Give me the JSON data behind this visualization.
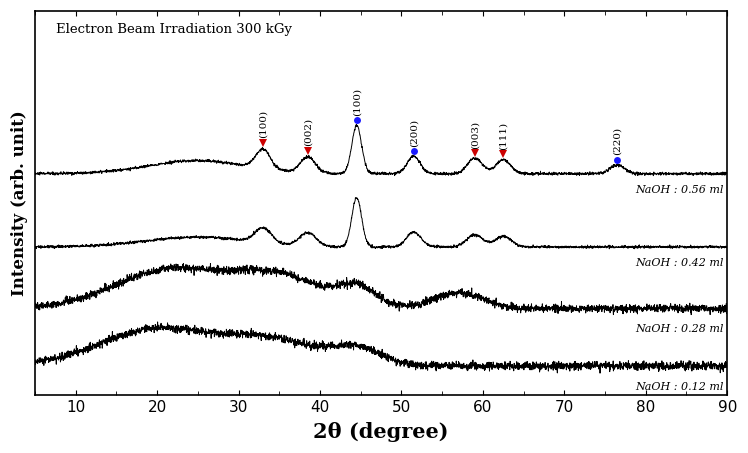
{
  "title": "Electron Beam Irradiation 300 kGy",
  "xlabel": "2θ (degree)",
  "ylabel": "Intensity (arb. unit)",
  "xlim": [
    5,
    90
  ],
  "labels": [
    "NaOH : 0.56 ml",
    "NaOH : 0.42 ml",
    "NaOH : 0.28 ml",
    "NaOH : 0.12 ml"
  ],
  "offsets": [
    0.6,
    0.4,
    0.22,
    0.06
  ],
  "red_markers": [
    {
      "two_theta": 33.0,
      "label": "(100)"
    },
    {
      "two_theta": 38.5,
      "label": "(002)"
    },
    {
      "two_theta": 59.0,
      "label": "(003)"
    },
    {
      "two_theta": 62.5,
      "label": "(111)"
    }
  ],
  "blue_markers": [
    {
      "two_theta": 44.5,
      "label": "(100)"
    },
    {
      "two_theta": 51.5,
      "label": "(200)"
    },
    {
      "two_theta": 76.5,
      "label": "(220)"
    }
  ],
  "background_color": "#ffffff",
  "line_color": "#000000",
  "red_marker_color": "#cc0000",
  "blue_marker_color": "#1a1aff"
}
